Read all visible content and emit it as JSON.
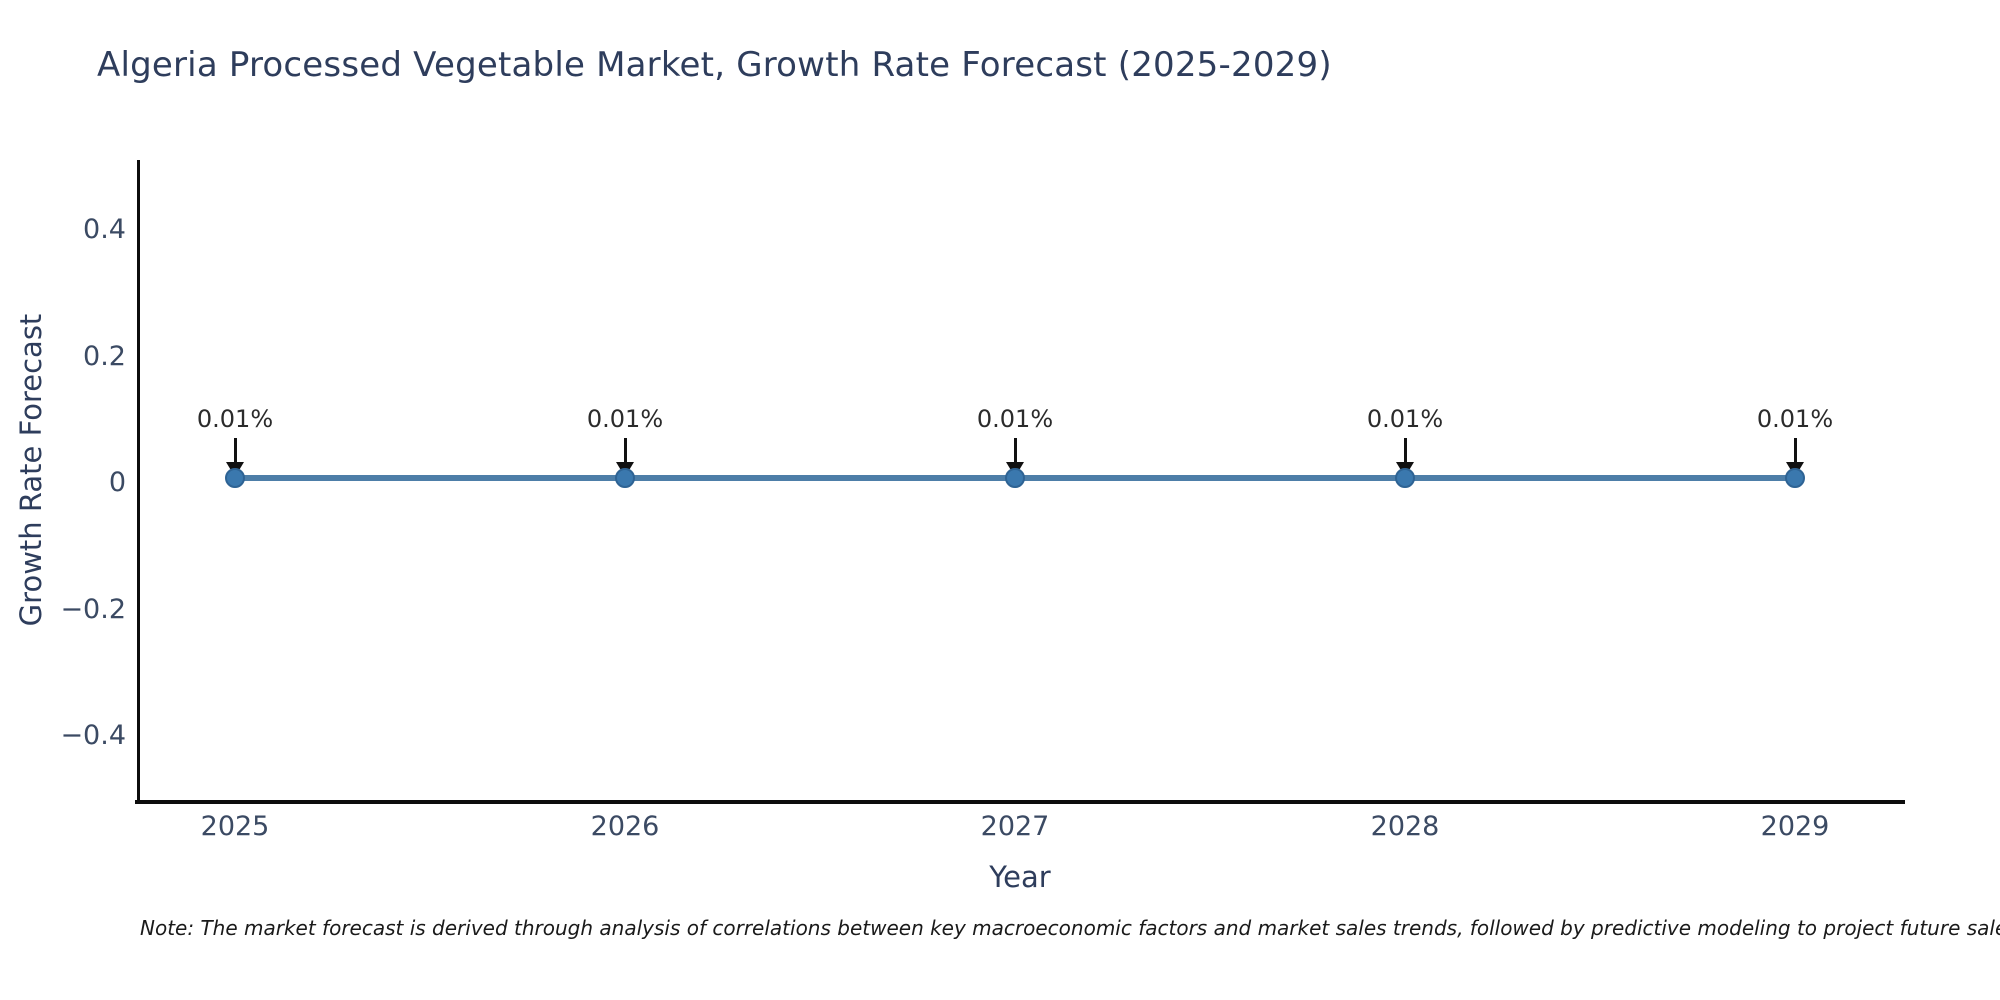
{
  "chart_data": {
    "type": "line",
    "title": "Algeria Processed Vegetable Market, Growth Rate Forecast (2025-2029)",
    "xlabel": "Year",
    "ylabel": "Growth Rate Forecast",
    "x": [
      2025,
      2026,
      2027,
      2028,
      2029
    ],
    "series": [
      {
        "name": "Growth Rate Forecast",
        "values": [
          0.01,
          0.01,
          0.01,
          0.01,
          0.01
        ]
      }
    ],
    "point_labels": [
      "0.01%",
      "0.01%",
      "0.01%",
      "0.01%",
      "0.01%"
    ],
    "xticks": [
      "2025",
      "2026",
      "2027",
      "2028",
      "2029"
    ],
    "yticks": [
      "0.4",
      "0.2",
      "0",
      "−0.2",
      "−0.4"
    ],
    "ylim": [
      -0.5,
      0.5
    ],
    "grid": false,
    "legend": false,
    "annotation_style": "value label with downward arrow to each point",
    "colors": {
      "line": "#4d7ea8",
      "marker": "#3a78ae",
      "marker_edge": "#2e6394",
      "arrow": "#111111",
      "axis": "#0d0d0d",
      "title_text": "#2e3d5c",
      "tick_text": "#3b4a63"
    }
  },
  "note": {
    "text": "Note: The market forecast is derived through analysis of correlations between key macroeconomic factors and market sales trends, followed by predictive modeling to project future sales"
  }
}
